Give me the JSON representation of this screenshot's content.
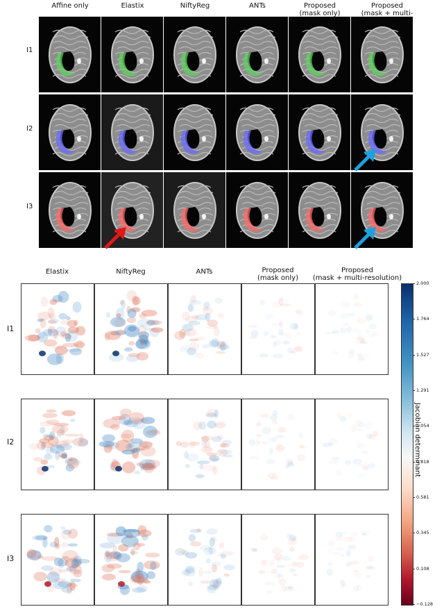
{
  "panel_a": {
    "columns": [
      "Affine only",
      "Elastix",
      "NiftyReg",
      "ANTs",
      "Proposed\n(mask only)",
      "Proposed\n(mask + multi-resolution)"
    ],
    "rows": [
      "I1",
      "I2",
      "I3"
    ],
    "overlay_colors": {
      "I1": "#5fd35f",
      "I2": "#6b6bff",
      "I3": "#ff6b6b"
    },
    "arrows": [
      {
        "row": "I2",
        "column": "Proposed\n(mask + multi-resolution)",
        "color": "#1ca0e0"
      },
      {
        "row": "I3",
        "column": "Elastix",
        "color": "#e01818"
      },
      {
        "row": "I3",
        "column": "Proposed\n(mask + multi-resolution)",
        "color": "#1ca0e0"
      }
    ]
  },
  "panel_b": {
    "columns": [
      "Elastix",
      "NiftyReg",
      "ANTs",
      "Proposed\n(mask only)",
      "Proposed\n(mask + multi-resolution)"
    ],
    "rows": [
      "I1",
      "I2",
      "I3"
    ],
    "colorbar": {
      "label": "Jacobian determinant",
      "ticks": [
        "2.000",
        "1.764",
        "1.527",
        "1.291",
        "1.054",
        "0.818",
        "0.581",
        "0.345",
        "0.108",
        "−0.128"
      ],
      "min": -0.128,
      "max": 2.0,
      "colormap": "RdBu"
    }
  }
}
